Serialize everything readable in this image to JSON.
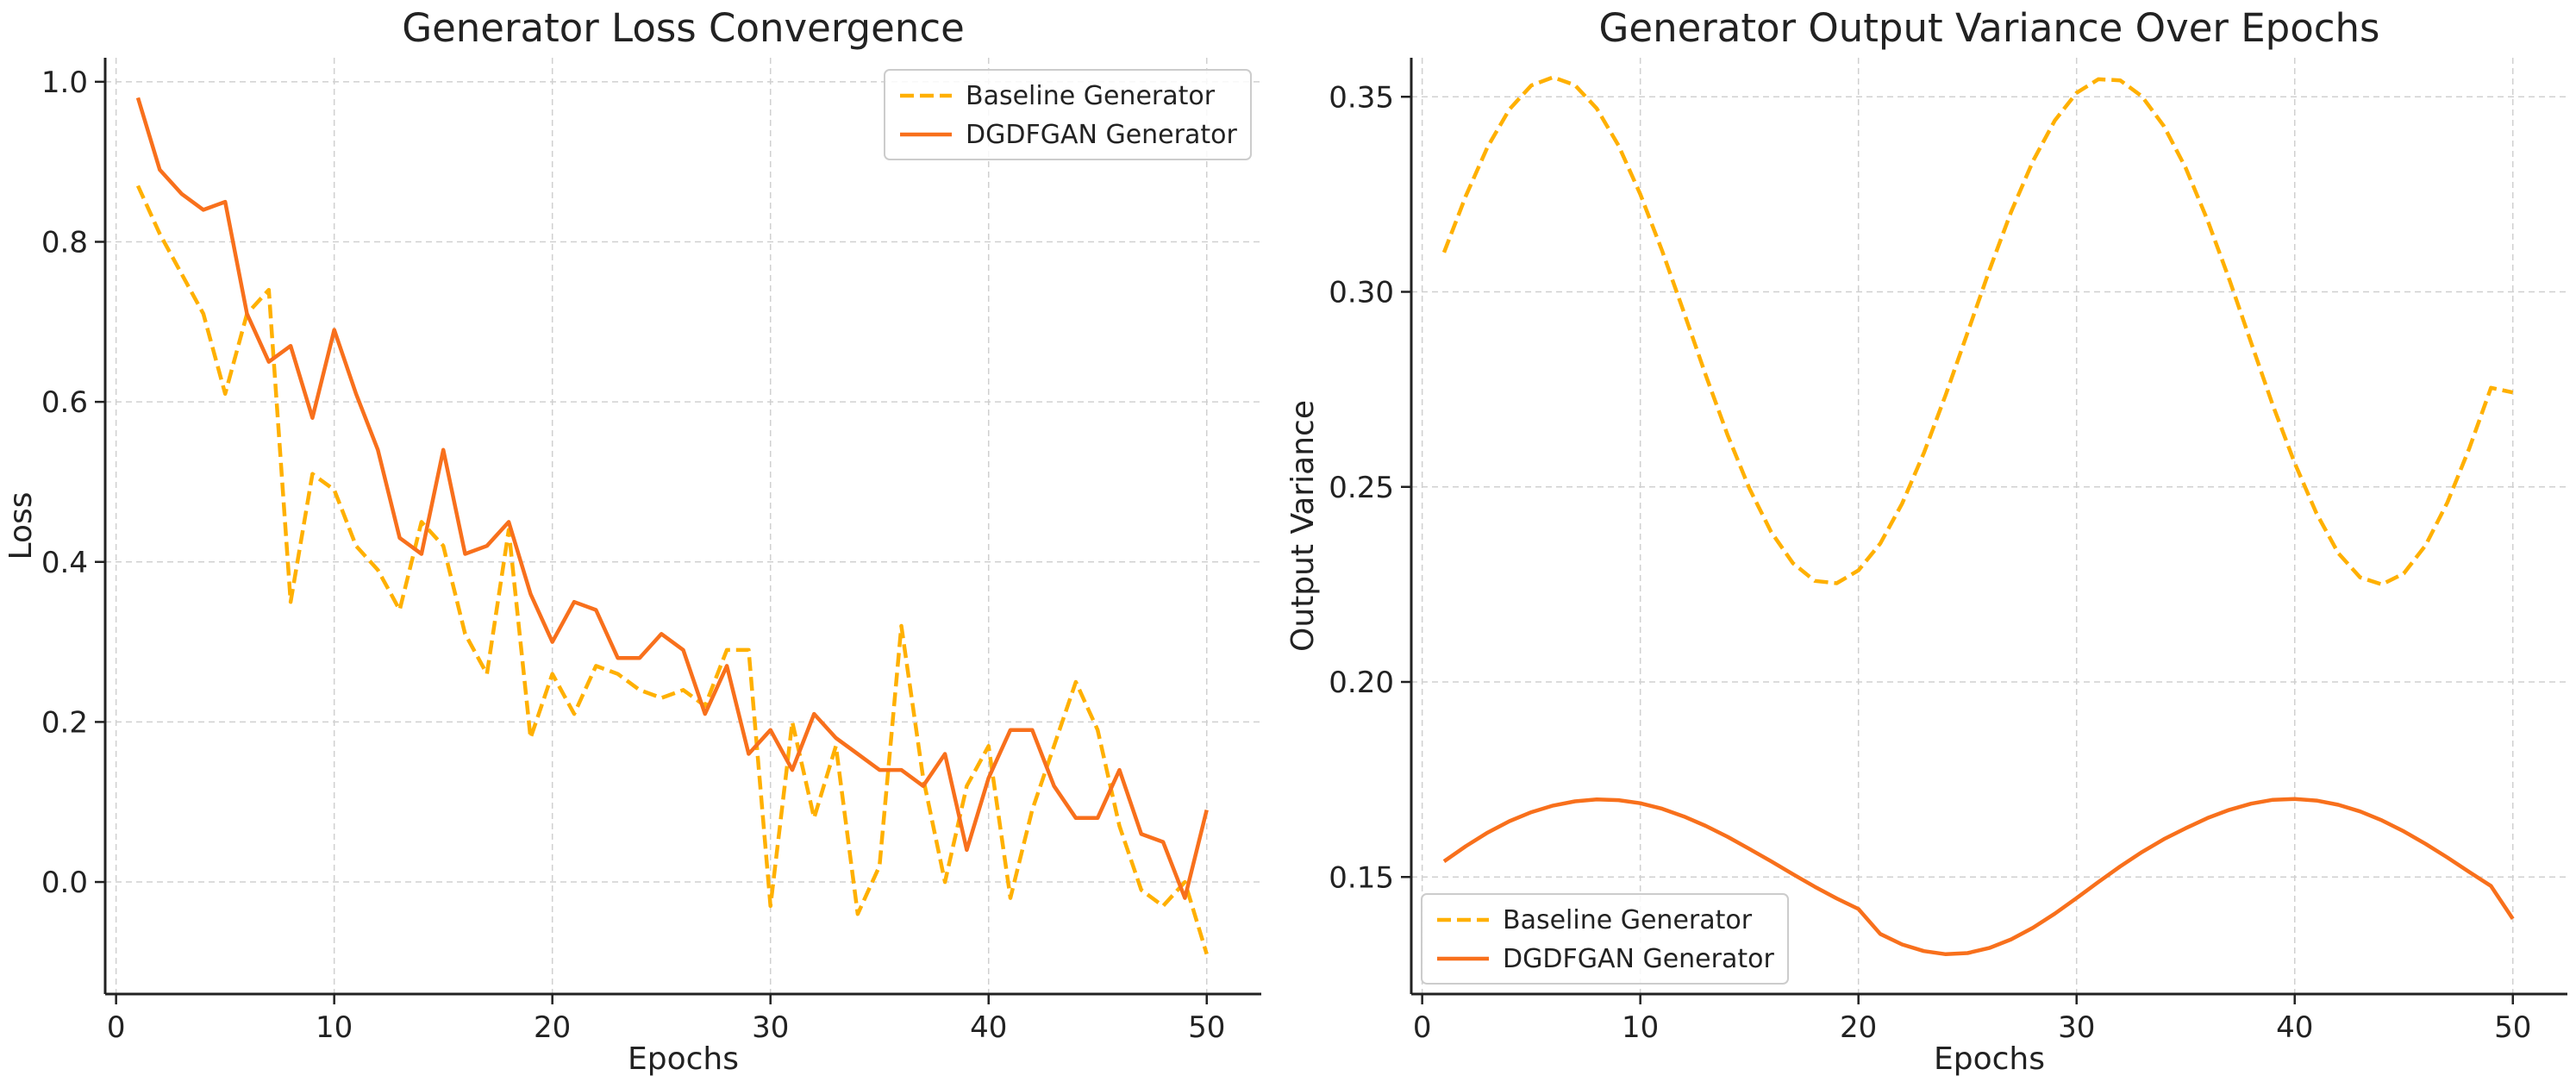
{
  "chart_data": [
    {
      "type": "line",
      "title": "Generator Loss Convergence",
      "xlabel": "Epochs",
      "ylabel": "Loss",
      "xlim": [
        -0.5,
        52.5
      ],
      "ylim": [
        -0.14,
        1.03
      ],
      "xticks": [
        0,
        10,
        20,
        30,
        40,
        50
      ],
      "yticks": [
        0.0,
        0.2,
        0.4,
        0.6,
        0.8,
        1.0
      ],
      "xtick_labels": [
        "0",
        "10",
        "20",
        "30",
        "40",
        "50"
      ],
      "ytick_labels": [
        "0.0",
        "0.2",
        "0.4",
        "0.6",
        "0.8",
        "1.0"
      ],
      "grid": true,
      "legend_position": "top-right",
      "x": [
        1,
        2,
        3,
        4,
        5,
        6,
        7,
        8,
        9,
        10,
        11,
        12,
        13,
        14,
        15,
        16,
        17,
        18,
        19,
        20,
        21,
        22,
        23,
        24,
        25,
        26,
        27,
        28,
        29,
        30,
        31,
        32,
        33,
        34,
        35,
        36,
        37,
        38,
        39,
        40,
        41,
        42,
        43,
        44,
        45,
        46,
        47,
        48,
        49,
        50
      ],
      "series": [
        {
          "name": "Baseline Generator",
          "color": "#FFB000",
          "dash": "dashed",
          "values": [
            0.87,
            0.81,
            0.76,
            0.71,
            0.61,
            0.71,
            0.74,
            0.35,
            0.51,
            0.49,
            0.42,
            0.39,
            0.34,
            0.45,
            0.42,
            0.31,
            0.26,
            0.44,
            0.18,
            0.26,
            0.21,
            0.27,
            0.26,
            0.24,
            0.23,
            0.24,
            0.22,
            0.29,
            0.29,
            -0.03,
            0.2,
            0.08,
            0.17,
            -0.04,
            0.02,
            0.32,
            0.13,
            0.0,
            0.12,
            0.17,
            -0.02,
            0.09,
            0.17,
            0.25,
            0.19,
            0.07,
            -0.01,
            -0.03,
            0.0,
            -0.09
          ]
        },
        {
          "name": "DGDFGAN Generator",
          "color": "#F8701C",
          "dash": "solid",
          "values": [
            0.98,
            0.89,
            0.86,
            0.84,
            0.85,
            0.71,
            0.65,
            0.67,
            0.58,
            0.69,
            0.61,
            0.54,
            0.43,
            0.41,
            0.54,
            0.41,
            0.42,
            0.45,
            0.36,
            0.3,
            0.35,
            0.34,
            0.28,
            0.28,
            0.31,
            0.29,
            0.21,
            0.27,
            0.16,
            0.19,
            0.14,
            0.21,
            0.18,
            0.16,
            0.14,
            0.14,
            0.12,
            0.16,
            0.04,
            0.13,
            0.19,
            0.19,
            0.12,
            0.08,
            0.08,
            0.14,
            0.06,
            0.05,
            -0.02,
            0.09
          ]
        }
      ]
    },
    {
      "type": "line",
      "title": "Generator Output Variance Over Epochs",
      "xlabel": "Epochs",
      "ylabel": "Output Variance",
      "xlim": [
        -0.5,
        52.5
      ],
      "ylim": [
        0.12,
        0.36
      ],
      "xticks": [
        0,
        10,
        20,
        30,
        40,
        50
      ],
      "yticks": [
        0.15,
        0.2,
        0.25,
        0.3,
        0.35
      ],
      "xtick_labels": [
        "0",
        "10",
        "20",
        "30",
        "40",
        "50"
      ],
      "ytick_labels": [
        "0.15",
        "0.20",
        "0.25",
        "0.30",
        "0.35"
      ],
      "grid": true,
      "legend_position": "bottom-left",
      "x": [
        1,
        2,
        3,
        4,
        5,
        6,
        7,
        8,
        9,
        10,
        11,
        12,
        13,
        14,
        15,
        16,
        17,
        18,
        19,
        20,
        21,
        22,
        23,
        24,
        25,
        26,
        27,
        28,
        29,
        30,
        31,
        32,
        33,
        34,
        35,
        36,
        37,
        38,
        39,
        40,
        41,
        42,
        43,
        44,
        45,
        46,
        47,
        48,
        49,
        50
      ],
      "series": [
        {
          "name": "Baseline Generator",
          "color": "#FFB000",
          "dash": "dashed",
          "values": [
            0.3101,
            0.3246,
            0.3372,
            0.3468,
            0.3529,
            0.355,
            0.353,
            0.347,
            0.3375,
            0.325,
            0.3105,
            0.2947,
            0.2786,
            0.2633,
            0.2496,
            0.2384,
            0.2304,
            0.2259,
            0.2253,
            0.2286,
            0.2355,
            0.2457,
            0.2587,
            0.2736,
            0.2895,
            0.3055,
            0.3205,
            0.3335,
            0.3439,
            0.351,
            0.3545,
            0.3542,
            0.3501,
            0.3425,
            0.3318,
            0.3184,
            0.3032,
            0.287,
            0.2709,
            0.2561,
            0.2432,
            0.233,
            0.2268,
            0.225,
            0.2278,
            0.235,
            0.246,
            0.2598,
            0.2754,
            0.2742
          ],
          "values_note": ""
        },
        {
          "name": "DGDFGAN Generator",
          "color": "#F8701C",
          "dash": "solid",
          "values": [
            0.154,
            0.1579,
            0.1614,
            0.1643,
            0.1666,
            0.1683,
            0.1694,
            0.1699,
            0.1697,
            0.1689,
            0.1675,
            0.1655,
            0.1631,
            0.1603,
            0.1572,
            0.154,
            0.1507,
            0.1475,
            0.1445,
            0.1418,
            0.1354,
            0.1327,
            0.131,
            0.1302,
            0.1305,
            0.1318,
            0.134,
            0.137,
            0.1406,
            0.1446,
            0.1487,
            0.1527,
            0.1564,
            0.1597,
            0.1625,
            0.1651,
            0.1672,
            0.1688,
            0.1698,
            0.17,
            0.1696,
            0.1685,
            0.1668,
            0.1645,
            0.1617,
            0.1585,
            0.155,
            0.1513,
            0.1477,
            0.1393
          ]
        }
      ]
    }
  ]
}
